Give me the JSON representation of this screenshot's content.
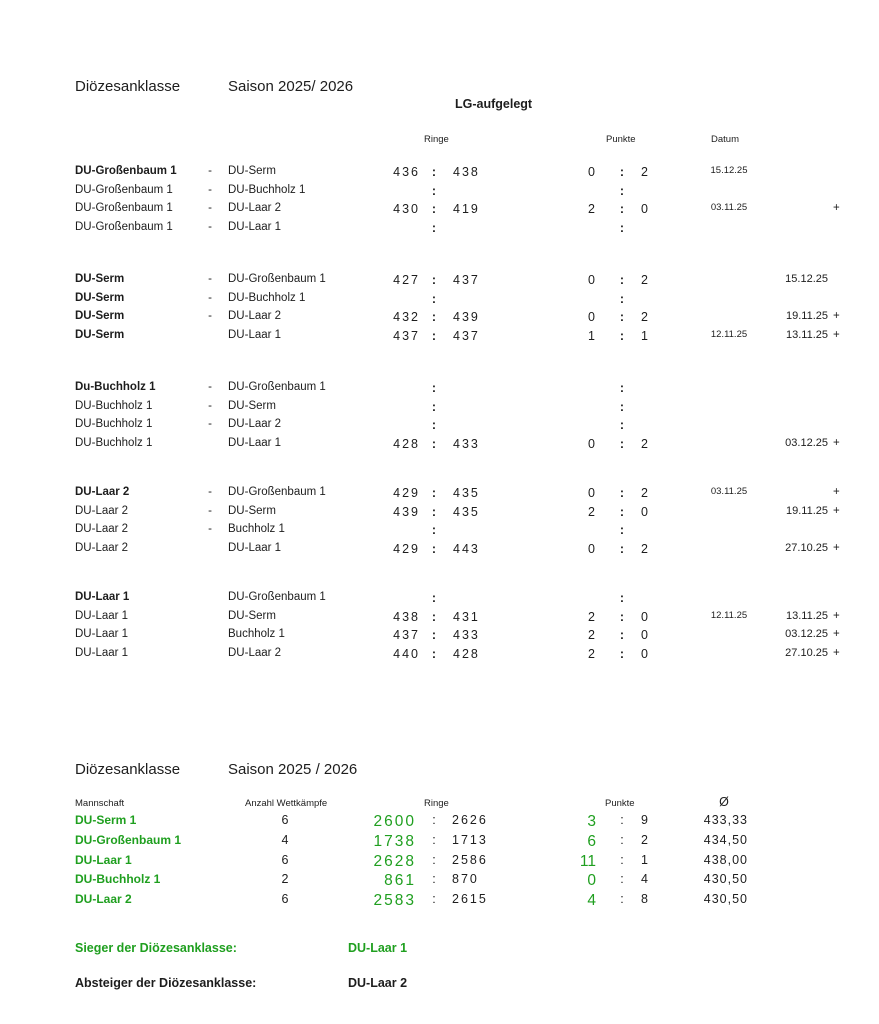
{
  "top": {
    "league": "Diözesanklasse",
    "season": "Saison 2025/ 2026",
    "discipline": "LG-aufgelegt",
    "col_ringe": "Ringe",
    "col_punkte": "Punkte",
    "col_datum": "Datum"
  },
  "glyphs": {
    "colon": ":"
  },
  "colors": {
    "green": "#1f9f1f",
    "text": "#1d1d1d"
  },
  "matches": {
    "groups": [
      {
        "rows": [
          {
            "home": "DU-Großenbaum 1",
            "bold": true,
            "sep": "-",
            "away": "DU-Serm",
            "r1": "436",
            "r2": "438",
            "p1": "0",
            "p2": "2",
            "d1": "15.12.25",
            "d2": "",
            "plus": ""
          },
          {
            "home": "DU-Großenbaum 1",
            "bold": false,
            "sep": "-",
            "away": "DU-Buchholz 1",
            "r1": "",
            "r2": "",
            "p1": "",
            "p2": "",
            "d1": "",
            "d2": "",
            "plus": ""
          },
          {
            "home": "DU-Großenbaum 1",
            "bold": false,
            "sep": "-",
            "away": "DU-Laar 2",
            "r1": "430",
            "r2": "419",
            "p1": "2",
            "p2": "0",
            "d1": "03.11.25",
            "d2": "",
            "plus": "+"
          },
          {
            "home": "DU-Großenbaum 1",
            "bold": false,
            "sep": "-",
            "away": "DU-Laar 1",
            "r1": "",
            "r2": "",
            "p1": "",
            "p2": "",
            "d1": "",
            "d2": "",
            "plus": ""
          }
        ]
      },
      {
        "rows": [
          {
            "home": "DU-Serm",
            "bold": true,
            "sep": "-",
            "away": "DU-Großenbaum 1",
            "r1": "427",
            "r2": "437",
            "p1": "0",
            "p2": "2",
            "d1": "",
            "d2": "15.12.25",
            "plus": ""
          },
          {
            "home": "DU-Serm",
            "bold": true,
            "sep": "-",
            "away": "DU-Buchholz 1",
            "r1": "",
            "r2": "",
            "p1": "",
            "p2": "",
            "d1": "",
            "d2": "",
            "plus": ""
          },
          {
            "home": "DU-Serm",
            "bold": true,
            "sep": "-",
            "away": "DU-Laar 2",
            "r1": "432",
            "r2": "439",
            "p1": "0",
            "p2": "2",
            "d1": "",
            "d2": "19.11.25",
            "plus": "+"
          },
          {
            "home": "DU-Serm",
            "bold": true,
            "sep": "",
            "away": "DU-Laar 1",
            "r1": "437",
            "r2": "437",
            "p1": "1",
            "p2": "1",
            "d1": "12.11.25",
            "d2": "13.11.25",
            "plus": "+"
          }
        ]
      },
      {
        "rows": [
          {
            "home": "Du-Buchholz 1",
            "bold": true,
            "sep": "-",
            "away": "DU-Großenbaum 1",
            "r1": "",
            "r2": "",
            "p1": "",
            "p2": "",
            "d1": "",
            "d2": "",
            "plus": ""
          },
          {
            "home": "DU-Buchholz 1",
            "bold": false,
            "sep": "-",
            "away": "DU-Serm",
            "r1": "",
            "r2": "",
            "p1": "",
            "p2": "",
            "d1": "",
            "d2": "",
            "plus": ""
          },
          {
            "home": "DU-Buchholz 1",
            "bold": false,
            "sep": "-",
            "away": "DU-Laar 2",
            "r1": "",
            "r2": "",
            "p1": "",
            "p2": "",
            "d1": "",
            "d2": "",
            "plus": ""
          },
          {
            "home": "DU-Buchholz 1",
            "bold": false,
            "sep": "",
            "away": "DU-Laar 1",
            "r1": "428",
            "r2": "433",
            "p1": "0",
            "p2": "2",
            "d1": "",
            "d2": "03.12.25",
            "plus": "+"
          }
        ]
      },
      {
        "rows": [
          {
            "home": "DU-Laar 2",
            "bold": true,
            "sep": "-",
            "away": "DU-Großenbaum 1",
            "r1": "429",
            "r2": "435",
            "p1": "0",
            "p2": "2",
            "d1": "03.11.25",
            "d2": "",
            "plus": "+"
          },
          {
            "home": "DU-Laar 2",
            "bold": false,
            "sep": "-",
            "away": "DU-Serm",
            "r1": "439",
            "r2": "435",
            "p1": "2",
            "p2": "0",
            "d1": "",
            "d2": "19.11.25",
            "plus": "+"
          },
          {
            "home": "DU-Laar 2",
            "bold": false,
            "sep": "-",
            "away": "Buchholz 1",
            "r1": "",
            "r2": "",
            "p1": "",
            "p2": "",
            "d1": "",
            "d2": "",
            "plus": ""
          },
          {
            "home": "DU-Laar 2",
            "bold": false,
            "sep": "",
            "away": "DU-Laar 1",
            "r1": "429",
            "r2": "443",
            "p1": "0",
            "p2": "2",
            "d1": "",
            "d2": "27.10.25",
            "plus": "+"
          }
        ]
      },
      {
        "rows": [
          {
            "home": "DU-Laar 1",
            "bold": true,
            "sep": "",
            "away": "DU-Großenbaum 1",
            "r1": "",
            "r2": "",
            "p1": "",
            "p2": "",
            "d1": "",
            "d2": "",
            "plus": ""
          },
          {
            "home": "DU-Laar 1",
            "bold": false,
            "sep": "",
            "away": "DU-Serm",
            "r1": "438",
            "r2": "431",
            "p1": "2",
            "p2": "0",
            "d1": "12.11.25",
            "d2": "13.11.25",
            "plus": "+"
          },
          {
            "home": "DU-Laar 1",
            "bold": false,
            "sep": "",
            "away": "Buchholz 1",
            "r1": "437",
            "r2": "433",
            "p1": "2",
            "p2": "0",
            "d1": "",
            "d2": "03.12.25",
            "plus": "+"
          },
          {
            "home": "DU-Laar 1",
            "bold": false,
            "sep": "",
            "away": "DU-Laar 2",
            "r1": "440",
            "r2": "428",
            "p1": "2",
            "p2": "0",
            "d1": "",
            "d2": "27.10.25",
            "plus": "+"
          }
        ]
      }
    ]
  },
  "standings": {
    "league": "Diözesanklasse",
    "season": "Saison 2025 / 2026",
    "col_mannschaft": "Mannschaft",
    "col_anzahl": "Anzahl Wettkämpfe",
    "col_ringe": "Ringe",
    "col_punkte": "Punkte",
    "col_avg": "Ø",
    "rows": [
      {
        "team": "DU-Serm 1",
        "matches": "6",
        "ringe_for": "2600",
        "ringe_against": "2626",
        "punkte_for": "3",
        "punkte_against": "9",
        "avg": "433,33"
      },
      {
        "team": "DU-Großenbaum 1",
        "matches": "4",
        "ringe_for": "1738",
        "ringe_against": "1713",
        "punkte_for": "6",
        "punkte_against": "2",
        "avg": "434,50"
      },
      {
        "team": "DU-Laar 1",
        "matches": "6",
        "ringe_for": "2628",
        "ringe_against": "2586",
        "punkte_for": "11",
        "punkte_against": "1",
        "avg": "438,00"
      },
      {
        "team": "DU-Buchholz 1",
        "matches": "2",
        "ringe_for": "861",
        "ringe_against": "870",
        "punkte_for": "0",
        "punkte_against": "4",
        "avg": "430,50"
      },
      {
        "team": "DU-Laar 2",
        "matches": "6",
        "ringe_for": "2583",
        "ringe_against": "2615",
        "punkte_for": "4",
        "punkte_against": "8",
        "avg": "430,50"
      }
    ]
  },
  "footer": {
    "sieger_label": "Sieger der Diözesanklasse:",
    "sieger_value": "DU-Laar 1",
    "absteiger_label": "Absteiger der Diözesanklasse:",
    "absteiger_value": "DU-Laar 2"
  }
}
